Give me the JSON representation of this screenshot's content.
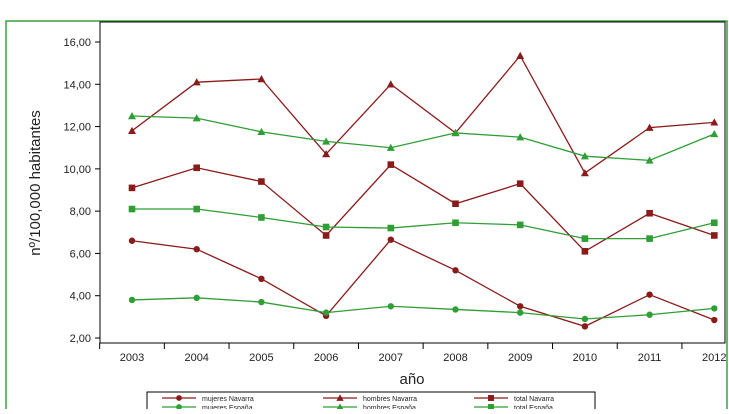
{
  "chart_data": {
    "type": "line",
    "title": "",
    "xlabel": "año",
    "ylabel": "nº/100,000 habitantes",
    "categories": [
      "2003",
      "2004",
      "2005",
      "2006",
      "2007",
      "2008",
      "2009",
      "2010",
      "2011",
      "2012"
    ],
    "ylim": [
      2,
      16
    ],
    "yticks": [
      "2,00",
      "4,00",
      "6,00",
      "8,00",
      "10,00",
      "12,00",
      "14,00",
      "16,00"
    ],
    "grid": false,
    "legend_position": "bottom",
    "series": [
      {
        "name": "mujeres Navarra",
        "color": "#8b1a1a",
        "marker": "circle",
        "values": [
          6.6,
          6.2,
          4.8,
          3.05,
          6.65,
          5.2,
          3.5,
          2.55,
          4.05,
          2.85
        ]
      },
      {
        "name": "hombres Navarra",
        "color": "#8b1a1a",
        "marker": "triangle",
        "values": [
          11.8,
          14.1,
          14.25,
          10.7,
          14.0,
          11.7,
          15.35,
          9.8,
          11.95,
          12.2
        ]
      },
      {
        "name": "total Navarra",
        "color": "#8b1a1a",
        "marker": "square",
        "values": [
          9.1,
          10.05,
          9.4,
          6.85,
          10.2,
          8.35,
          9.3,
          6.1,
          7.9,
          6.85
        ]
      },
      {
        "name": "mujeres España",
        "color": "#2e9e35",
        "marker": "circle",
        "values": [
          3.8,
          3.9,
          3.7,
          3.2,
          3.5,
          3.35,
          3.2,
          2.9,
          3.1,
          3.4
        ]
      },
      {
        "name": "hombres España",
        "color": "#2e9e35",
        "marker": "triangle",
        "values": [
          12.5,
          12.4,
          11.75,
          11.3,
          11.0,
          11.7,
          11.5,
          10.6,
          10.4,
          11.65
        ]
      },
      {
        "name": "total España",
        "color": "#2e9e35",
        "marker": "square",
        "values": [
          8.1,
          8.1,
          7.7,
          7.25,
          7.2,
          7.45,
          7.35,
          6.7,
          6.7,
          7.45
        ]
      }
    ]
  }
}
